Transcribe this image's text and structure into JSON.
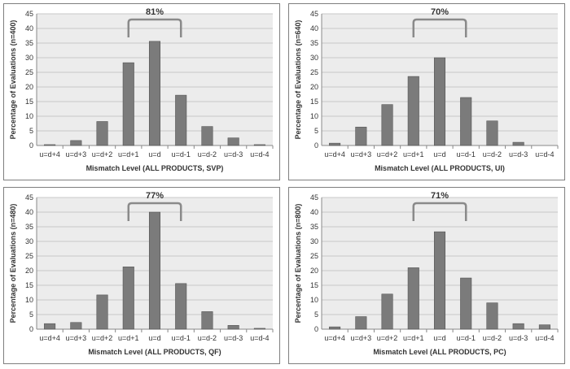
{
  "colors": {
    "bar": "#7b7b7b",
    "bar_edge": "#4a4a4a",
    "plot_bg": "#ececec",
    "grid": "#c8c8c8",
    "bracket": "#8a8a8a"
  },
  "chart_data": [
    {
      "type": "bar",
      "categories": [
        "u=d+4",
        "u=d+3",
        "u=d+2",
        "u=d+1",
        "u=d",
        "u=d-1",
        "u=d-2",
        "u=d-3",
        "u=d-4"
      ],
      "values": [
        0.3,
        1.7,
        8.2,
        28.3,
        35.6,
        17.2,
        6.5,
        2.6,
        0.3
      ],
      "xlabel": "Mismatch Level (ALL PRODUCTS, SVP)",
      "ylabel": "Percentage of Evaluations (n=400)",
      "ylim": [
        0,
        45
      ],
      "yticks": [
        0,
        5,
        10,
        15,
        20,
        25,
        30,
        35,
        40,
        45
      ],
      "grid": true,
      "annotation": {
        "text": "81%",
        "from": "u=d+1",
        "to": "u=d-1"
      }
    },
    {
      "type": "bar",
      "categories": [
        "u=d+4",
        "u=d+3",
        "u=d+2",
        "u=d+1",
        "u=d",
        "u=d-1",
        "u=d-2",
        "u=d-3",
        "u=d-4"
      ],
      "values": [
        0.8,
        6.3,
        14.0,
        23.6,
        30.0,
        16.4,
        8.4,
        1.1,
        0
      ],
      "xlabel": "Mismatch Level (ALL PRODUCTS, UI)",
      "ylabel": "Percentage of Evaluations (n=640)",
      "ylim": [
        0,
        45
      ],
      "yticks": [
        0,
        5,
        10,
        15,
        20,
        25,
        30,
        35,
        40,
        45
      ],
      "grid": true,
      "annotation": {
        "text": "70%",
        "from": "u=d+1",
        "to": "u=d-1"
      }
    },
    {
      "type": "bar",
      "categories": [
        "u=d+4",
        "u=d+3",
        "u=d+2",
        "u=d+1",
        "u=d",
        "u=d-1",
        "u=d-2",
        "u=d-3",
        "u=d-4"
      ],
      "values": [
        1.9,
        2.3,
        11.7,
        21.3,
        40.0,
        15.6,
        6.0,
        1.3,
        0.3
      ],
      "xlabel": "Mismatch Level (ALL PRODUCTS, QF)",
      "ylabel": "Percentage of Evaluations (n=480)",
      "ylim": [
        0,
        45
      ],
      "yticks": [
        0,
        5,
        10,
        15,
        20,
        25,
        30,
        35,
        40,
        45
      ],
      "grid": true,
      "annotation": {
        "text": "77%",
        "from": "u=d+1",
        "to": "u=d-1"
      }
    },
    {
      "type": "bar",
      "categories": [
        "u=d+4",
        "u=d+3",
        "u=d+2",
        "u=d+1",
        "u=d",
        "u=d-1",
        "u=d-2",
        "u=d-3",
        "u=d-4"
      ],
      "values": [
        0.8,
        4.3,
        12.0,
        21.0,
        33.3,
        17.5,
        9.0,
        1.9,
        1.5
      ],
      "xlabel": "Mismatch Level (ALL PRODUCTS, PC)",
      "ylabel": "Percentage of Evaluations (n=800)",
      "ylim": [
        0,
        45
      ],
      "yticks": [
        0,
        5,
        10,
        15,
        20,
        25,
        30,
        35,
        40,
        45
      ],
      "grid": true,
      "annotation": {
        "text": "71%",
        "from": "u=d+1",
        "to": "u=d-1"
      }
    }
  ]
}
